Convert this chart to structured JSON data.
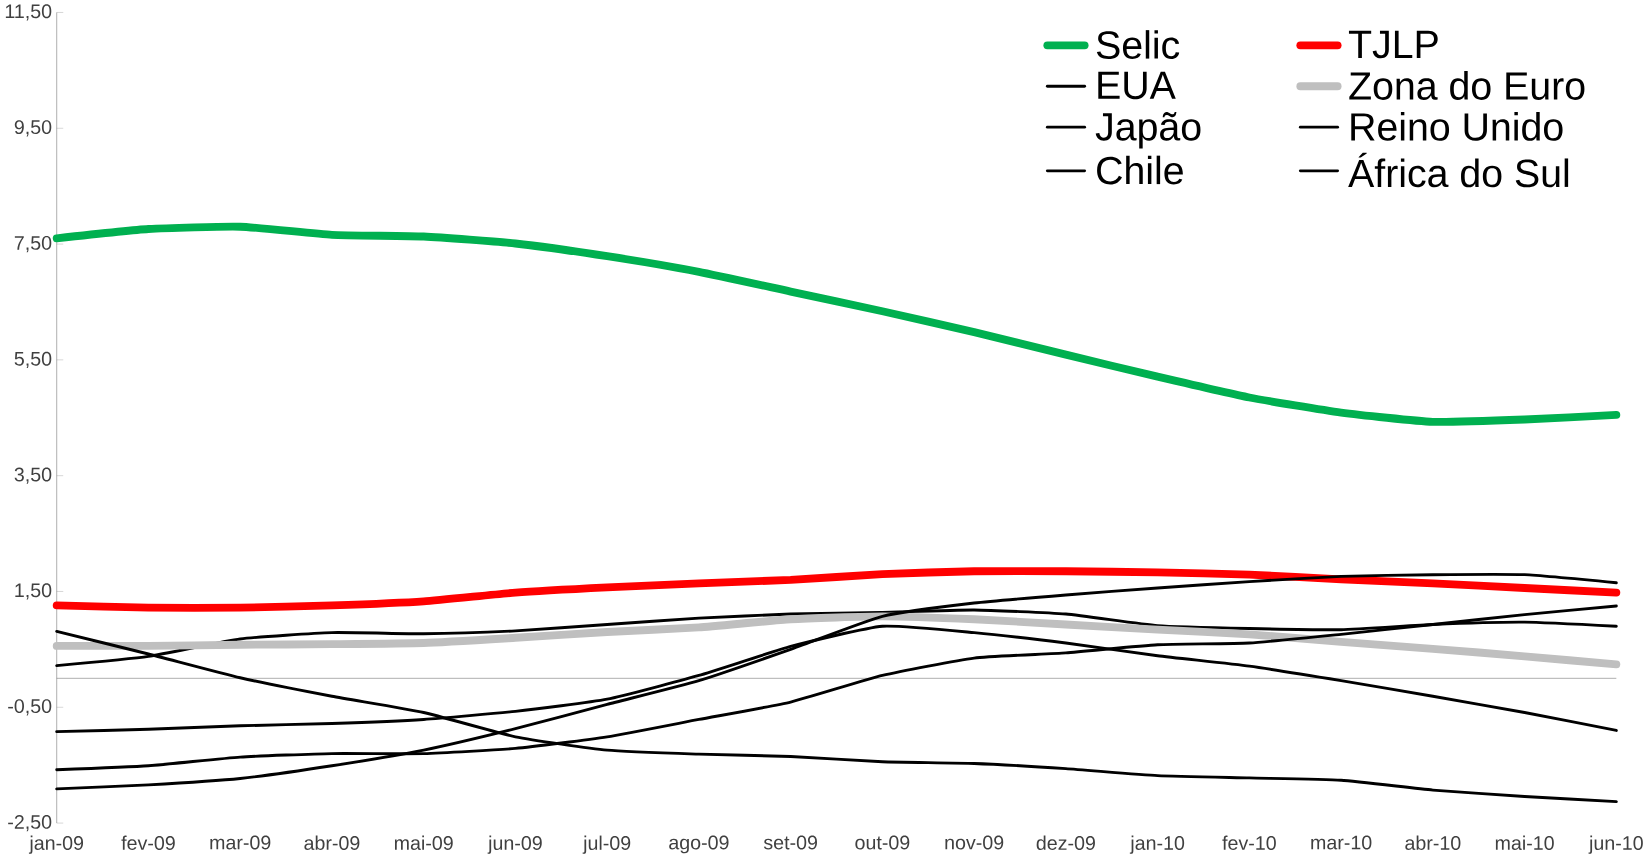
{
  "chart_data": {
    "type": "line",
    "categories": [
      "jan-09",
      "fev-09",
      "mar-09",
      "abr-09",
      "mai-09",
      "jun-09",
      "jul-09",
      "ago-09",
      "set-09",
      "out-09",
      "nov-09",
      "dez-09",
      "jan-10",
      "fev-10",
      "mar-10",
      "abr-10",
      "mai-10",
      "jun-10"
    ],
    "series": [
      {
        "name": "Selic",
        "color": "#00b050",
        "values": [
          7.6,
          7.76,
          7.8,
          7.66,
          7.63,
          7.51,
          7.29,
          7.02,
          6.68,
          6.34,
          5.98,
          5.59,
          5.21,
          4.85,
          4.59,
          4.43,
          4.47,
          4.55
        ]
      },
      {
        "name": "TJLP",
        "color": "#ff0000",
        "values": [
          1.26,
          1.22,
          1.22,
          1.26,
          1.33,
          1.48,
          1.57,
          1.64,
          1.7,
          1.8,
          1.85,
          1.85,
          1.83,
          1.79,
          1.71,
          1.64,
          1.56,
          1.48
        ]
      },
      {
        "name": "EUA",
        "color": "#000000",
        "values": [
          0.22,
          0.38,
          0.68,
          0.79,
          0.77,
          0.82,
          0.93,
          1.04,
          1.11,
          1.14,
          1.18,
          1.11,
          0.91,
          0.86,
          0.84,
          0.93,
          0.97,
          0.9
        ]
      },
      {
        "name": "Zona do Euro",
        "color": "#bfbfbf",
        "values": [
          0.56,
          0.56,
          0.58,
          0.59,
          0.61,
          0.7,
          0.8,
          0.88,
          1.02,
          1.07,
          1.02,
          0.93,
          0.84,
          0.76,
          0.63,
          0.51,
          0.38,
          0.24
        ]
      },
      {
        "name": "Japão",
        "color": "#000000",
        "values": [
          0.81,
          0.42,
          0.01,
          -0.31,
          -0.59,
          -1.01,
          -1.24,
          -1.31,
          -1.35,
          -1.44,
          -1.47,
          -1.56,
          -1.68,
          -1.72,
          -1.76,
          -1.93,
          -2.04,
          -2.13
        ]
      },
      {
        "name": "Reino Unido",
        "color": "#000000",
        "values": [
          -1.58,
          -1.51,
          -1.36,
          -1.3,
          -1.3,
          -1.21,
          -1.01,
          -0.71,
          -0.41,
          0.05,
          0.35,
          0.44,
          0.58,
          0.61,
          0.76,
          0.93,
          1.1,
          1.25
        ]
      },
      {
        "name": "Chile",
        "color": "#000000",
        "values": [
          -0.92,
          -0.88,
          -0.82,
          -0.78,
          -0.71,
          -0.57,
          -0.36,
          0.05,
          0.55,
          0.9,
          0.79,
          0.61,
          0.39,
          0.21,
          -0.04,
          -0.31,
          -0.59,
          -0.9
        ]
      },
      {
        "name": "África do Sul",
        "color": "#000000",
        "values": [
          -1.91,
          -1.84,
          -1.73,
          -1.51,
          -1.24,
          -0.87,
          -0.45,
          -0.04,
          0.5,
          1.07,
          1.3,
          1.44,
          1.56,
          1.67,
          1.76,
          1.79,
          1.79,
          1.65
        ]
      }
    ],
    "ylim": [
      -2.5,
      11.5
    ],
    "yticks": [
      {
        "value": -2.5,
        "label": "-2,50"
      },
      {
        "value": -0.5,
        "label": "-0,50"
      },
      {
        "value": 1.5,
        "label": "1,50"
      },
      {
        "value": 3.5,
        "label": "3,50"
      },
      {
        "value": 5.5,
        "label": "5,50"
      },
      {
        "value": 7.5,
        "label": "7,50"
      },
      {
        "value": 9.5,
        "label": "9,50"
      },
      {
        "value": 11.5,
        "label": "11,50"
      }
    ],
    "legend": "top right",
    "grid": false,
    "marker": "none",
    "line_style": "solid"
  }
}
